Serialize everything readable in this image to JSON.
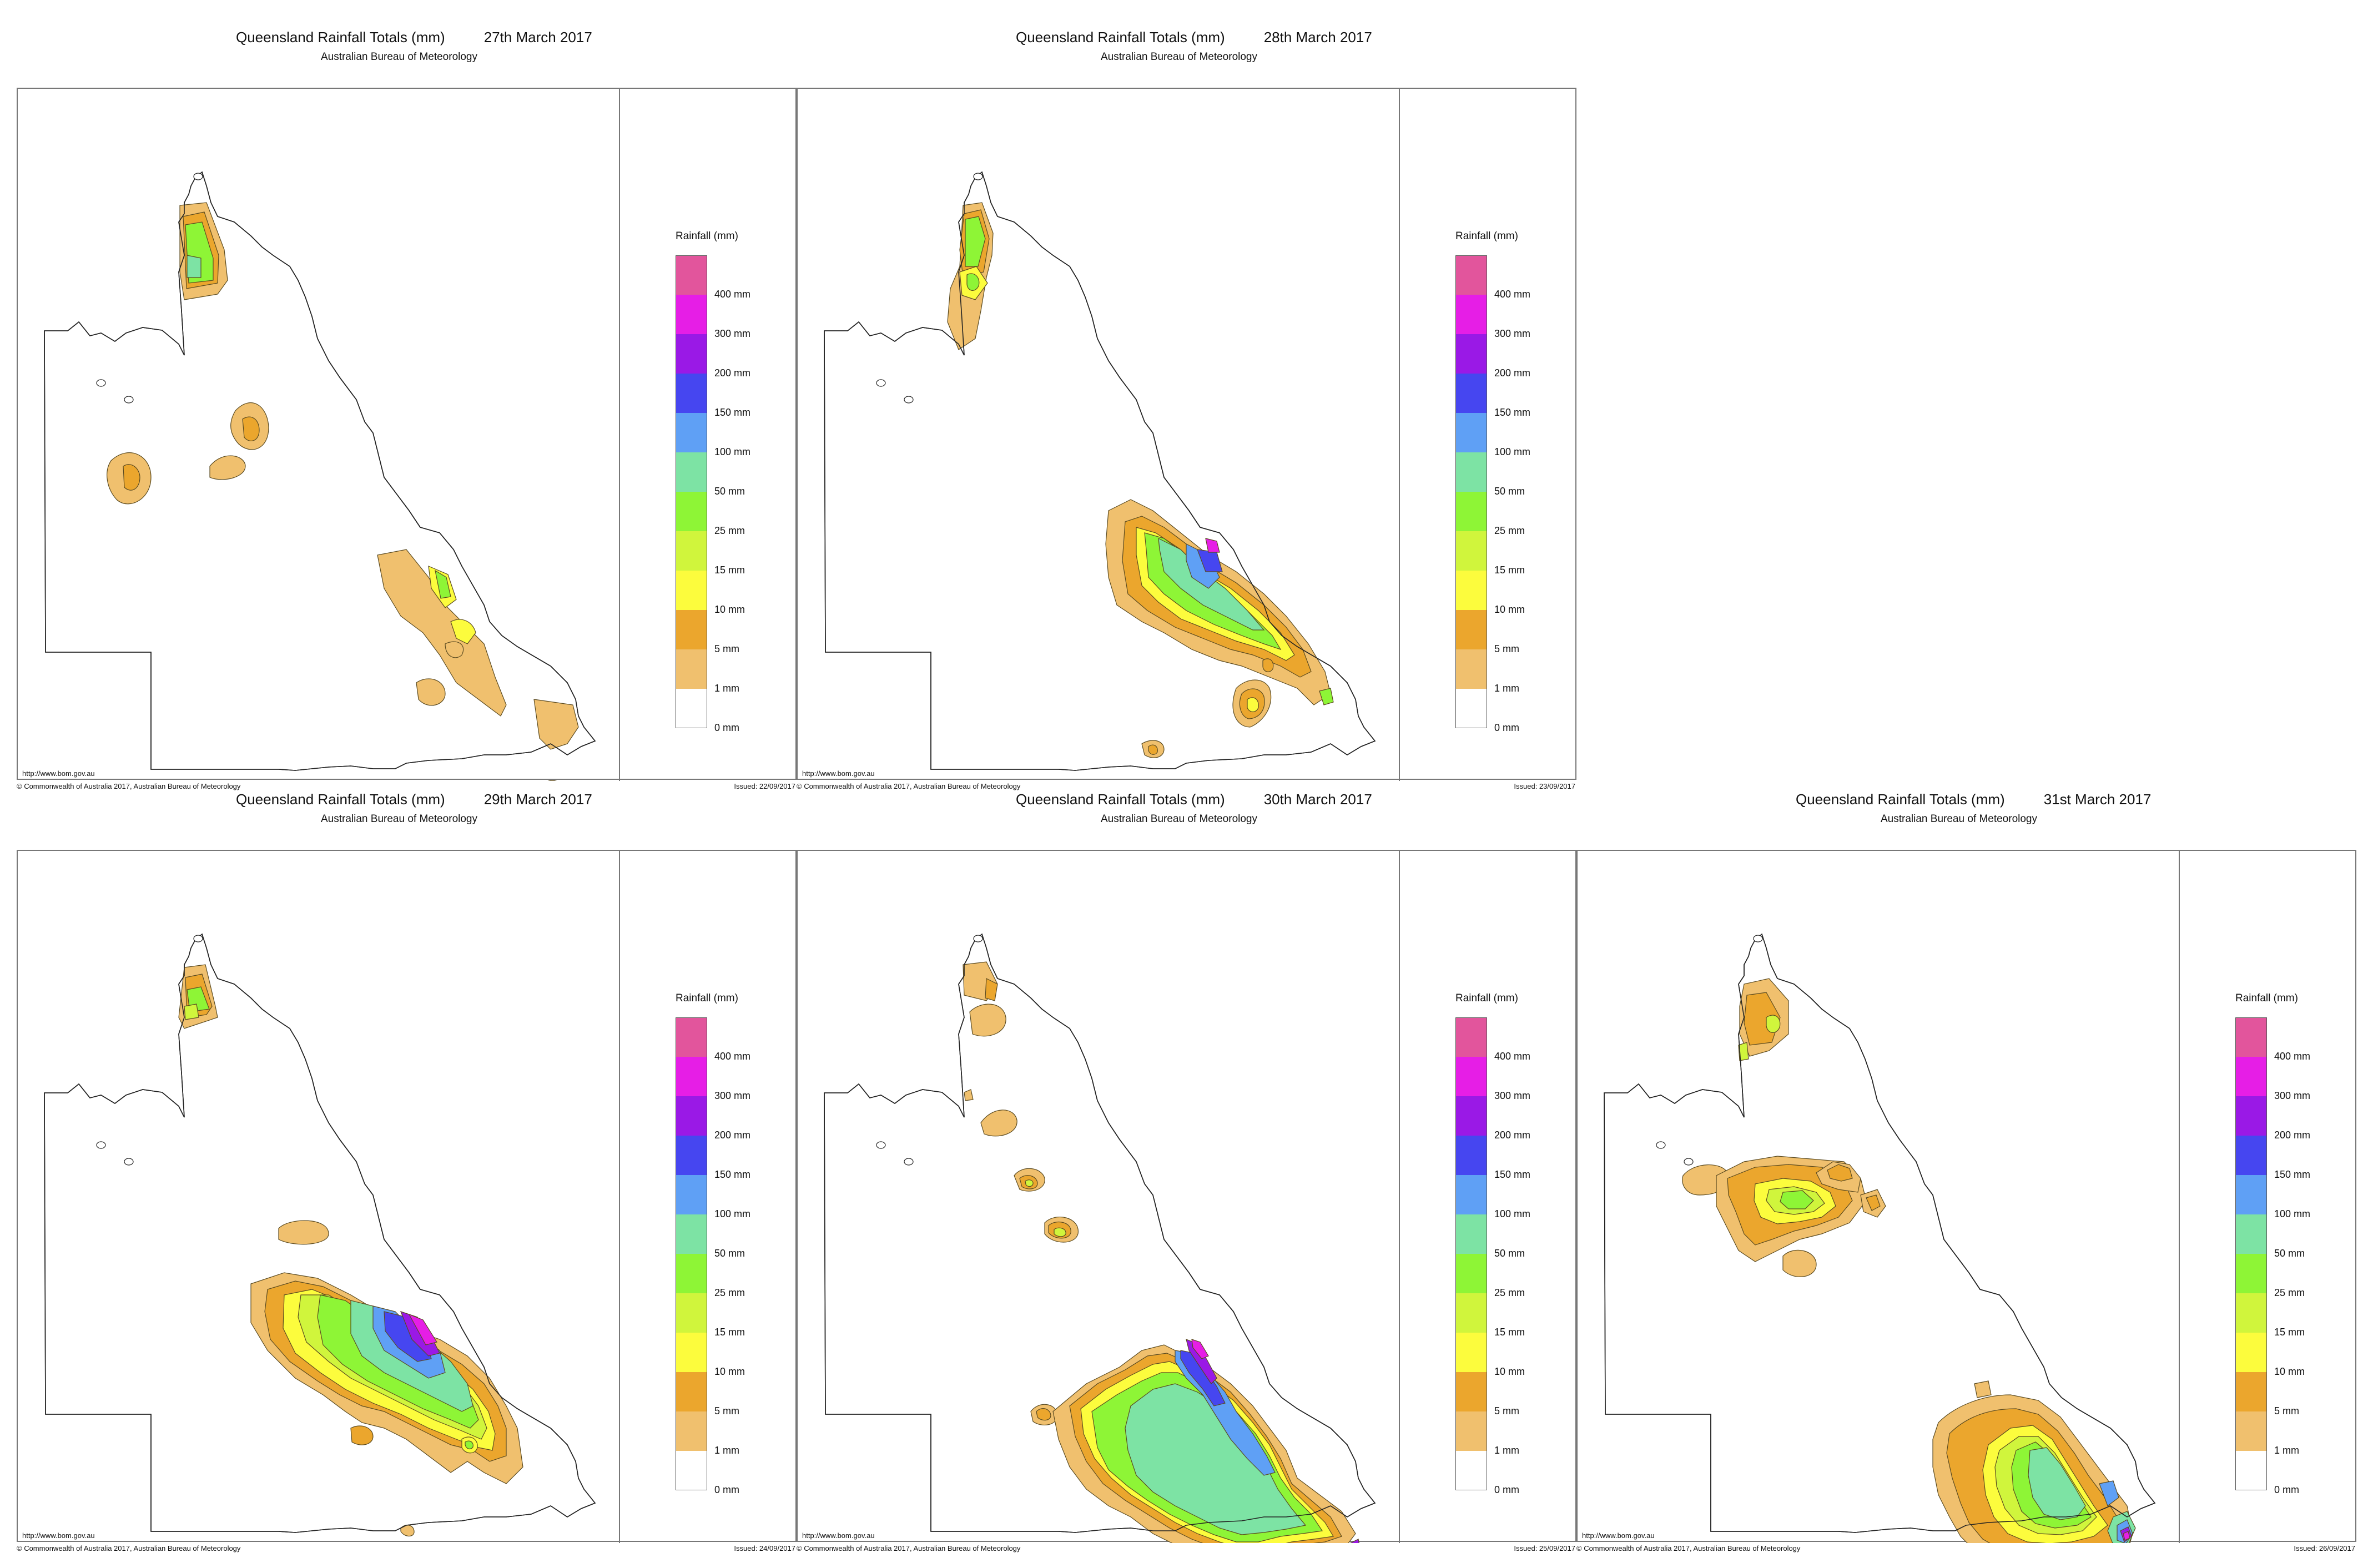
{
  "common": {
    "title_prefix": "Queensland Rainfall Totals (mm)",
    "subtitle": "Australian Bureau of Meteorology",
    "url": "http://www.bom.gov.au",
    "copyright": "© Commonwealth of Australia 2017, Australian Bureau of Meteorology",
    "legend_title": "Rainfall (mm)"
  },
  "legend": {
    "colors": [
      "#e2559c",
      "#e61ee6",
      "#9a19e6",
      "#4646f0",
      "#5fa0f5",
      "#7de3a4",
      "#8ef536",
      "#d0f53c",
      "#fcfc3d",
      "#eba62d",
      "#f0c06e",
      "#ffffff"
    ],
    "labels": [
      "400 mm",
      "300 mm",
      "200 mm",
      "150 mm",
      "100 mm",
      "50 mm",
      "25 mm",
      "15 mm",
      "10 mm",
      "5 mm",
      "1 mm",
      "0 mm"
    ]
  },
  "panels": [
    {
      "date": "27th March 2017",
      "issued": "Issued: 22/09/2017"
    },
    {
      "date": "28th March 2017",
      "issued": "Issued: 23/09/2017"
    },
    {
      "date": "29th March 2017",
      "issued": "Issued: 24/09/2017"
    },
    {
      "date": "30th March 2017",
      "issued": "Issued: 25/09/2017"
    },
    {
      "date": "31st March 2017",
      "issued": "Issued: 26/09/2017"
    }
  ]
}
